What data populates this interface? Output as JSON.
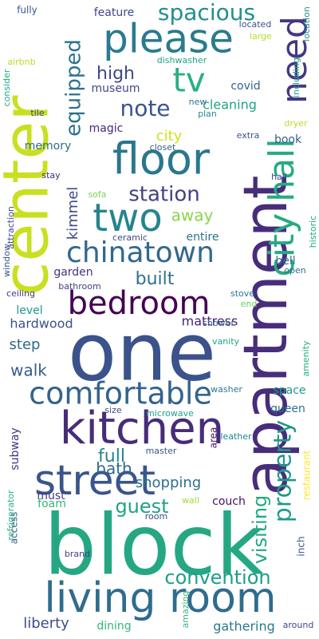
{
  "words": [
    {
      "text": "one",
      "color": "#3b528b",
      "weight": 10
    },
    {
      "text": "block",
      "color": "#26a784",
      "weight": 10
    },
    {
      "text": "apartment",
      "color": "#472d7b",
      "weight": 10
    },
    {
      "text": "center",
      "color": "#c8e020",
      "weight": 10
    },
    {
      "text": "living room",
      "color": "#2f6c8e",
      "weight": 9
    },
    {
      "text": "street",
      "color": "#39558c",
      "weight": 9
    },
    {
      "text": "kitchen",
      "color": "#472c7a",
      "weight": 9
    },
    {
      "text": "comfortable",
      "color": "#33638d",
      "weight": 8
    },
    {
      "text": "bedroom",
      "color": "#440154",
      "weight": 8
    },
    {
      "text": "floor",
      "color": "#2a768e",
      "weight": 8
    },
    {
      "text": "please",
      "color": "#297b8e",
      "weight": 8
    },
    {
      "text": "two",
      "color": "#25848e",
      "weight": 8
    },
    {
      "text": "city hall",
      "color": "#25ab82",
      "weight": 8
    },
    {
      "text": "chinatown",
      "color": "#31688e",
      "weight": 7
    },
    {
      "text": "need",
      "color": "#453781",
      "weight": 7
    },
    {
      "text": "tv",
      "color": "#2ab07f",
      "weight": 7
    },
    {
      "text": "property",
      "color": "#1f9a8a",
      "weight": 6
    },
    {
      "text": "spacious",
      "color": "#218f8d",
      "weight": 6
    },
    {
      "text": "note",
      "color": "#39558c",
      "weight": 6
    },
    {
      "text": "station",
      "color": "#424086",
      "weight": 6
    },
    {
      "text": "equipped",
      "color": "#2c728e",
      "weight": 6
    },
    {
      "text": "guest",
      "color": "#20a386",
      "weight": 6
    },
    {
      "text": "convention",
      "color": "#1f9e89",
      "weight": 6
    },
    {
      "text": "visiting",
      "color": "#22a884",
      "weight": 5
    },
    {
      "text": "built",
      "color": "#2d718e",
      "weight": 5
    },
    {
      "text": "high",
      "color": "#3e4989",
      "weight": 5
    },
    {
      "text": "full",
      "color": "#25848e",
      "weight": 5
    },
    {
      "text": "bath",
      "color": "#31688e",
      "weight": 5
    },
    {
      "text": "walk",
      "color": "#365d8d",
      "weight": 5
    },
    {
      "text": "away",
      "color": "#89d548",
      "weight": 5
    },
    {
      "text": "kimmel",
      "color": "#3e4a89",
      "weight": 4
    },
    {
      "text": "shopping",
      "color": "#2e6e8e",
      "weight": 4
    },
    {
      "text": "step",
      "color": "#31688e",
      "weight": 4
    },
    {
      "text": "liberty",
      "color": "#3d4d8a",
      "weight": 4
    },
    {
      "text": "gathering",
      "color": "#2a788e",
      "weight": 4
    },
    {
      "text": "mattress",
      "color": "#482374",
      "weight": 4
    },
    {
      "text": "city",
      "color": "#d2e21b",
      "weight": 4
    },
    {
      "text": "cleaning",
      "color": "#1fa287",
      "weight": 4
    },
    {
      "text": "hardwood",
      "color": "#3b528b",
      "weight": 3
    },
    {
      "text": "museum",
      "color": "#414487",
      "weight": 3
    },
    {
      "text": "feature",
      "color": "#3e4989",
      "weight": 3
    },
    {
      "text": "magic",
      "color": "#482878",
      "weight": 3
    },
    {
      "text": "covid",
      "color": "#33638d",
      "weight": 3
    },
    {
      "text": "book",
      "color": "#34618d",
      "weight": 3
    },
    {
      "text": "memory",
      "color": "#2f6c8e",
      "weight": 3
    },
    {
      "text": "space",
      "color": "#1f9a8a",
      "weight": 3
    },
    {
      "text": "queen",
      "color": "#2d708e",
      "weight": 3
    },
    {
      "text": "couch",
      "color": "#471063",
      "weight": 3
    },
    {
      "text": "dining",
      "color": "#35b779",
      "weight": 3
    },
    {
      "text": "garden",
      "color": "#46327e",
      "weight": 3
    },
    {
      "text": "entire",
      "color": "#2c738e",
      "weight": 3
    },
    {
      "text": "bell",
      "color": "#2c728e",
      "weight": 3
    },
    {
      "text": "level",
      "color": "#1f988b",
      "weight": 3
    },
    {
      "text": "foam",
      "color": "#35b779",
      "weight": 3
    },
    {
      "text": "must",
      "color": "#443983",
      "weight": 3
    },
    {
      "text": "subway",
      "color": "#453581",
      "weight": 3
    },
    {
      "text": "restaurant",
      "color": "#fde725",
      "weight": 2
    },
    {
      "text": "area",
      "color": "#481c6e",
      "weight": 2
    },
    {
      "text": "inch",
      "color": "#3a548c",
      "weight": 2
    },
    {
      "text": "access",
      "color": "#34608d",
      "weight": 2
    },
    {
      "text": "fully",
      "color": "#39568c",
      "weight": 2
    },
    {
      "text": "large",
      "color": "#b5de2b",
      "weight": 2
    },
    {
      "text": "located",
      "color": "#3b518b",
      "weight": 2
    },
    {
      "text": "airbnb",
      "color": "#b8de29",
      "weight": 2
    },
    {
      "text": "dishwasher",
      "color": "#20a486",
      "weight": 2
    },
    {
      "text": "including",
      "color": "#20a386",
      "weight": 2
    },
    {
      "text": "location",
      "color": "#21918c",
      "weight": 2
    },
    {
      "text": "consider",
      "color": "#23a983",
      "weight": 2
    },
    {
      "text": "tile",
      "color": "#404588",
      "weight": 2
    },
    {
      "text": "new",
      "color": "#2c738e",
      "weight": 2
    },
    {
      "text": "plan",
      "color": "#238a8d",
      "weight": 2
    },
    {
      "text": "dryer",
      "color": "#bade28",
      "weight": 2
    },
    {
      "text": "extra",
      "color": "#3b528b",
      "weight": 2
    },
    {
      "text": "closet",
      "color": "#33638d",
      "weight": 2
    },
    {
      "text": "stay",
      "color": "#482979",
      "weight": 2
    },
    {
      "text": "window",
      "color": "#3b528b",
      "weight": 2
    },
    {
      "text": "attraction",
      "color": "#3f4889",
      "weight": 2
    },
    {
      "text": "sofa",
      "color": "#7ad151",
      "weight": 2
    },
    {
      "text": "hall",
      "color": "#424086",
      "weight": 2
    },
    {
      "text": "historic",
      "color": "#22a785",
      "weight": 2
    },
    {
      "text": "ceramic",
      "color": "#3e4989",
      "weight": 2
    },
    {
      "text": "open",
      "color": "#2e6f8e",
      "weight": 2
    },
    {
      "text": "bathroom",
      "color": "#433e85",
      "weight": 2
    },
    {
      "text": "ceiling",
      "color": "#453882",
      "weight": 2
    },
    {
      "text": "stove",
      "color": "#2a788e",
      "weight": 2
    },
    {
      "text": "end",
      "color": "#6ece58",
      "weight": 2
    },
    {
      "text": "shower",
      "color": "#33638d",
      "weight": 2
    },
    {
      "text": "vanity",
      "color": "#20a486",
      "weight": 2
    },
    {
      "text": "amenity",
      "color": "#25ac82",
      "weight": 2
    },
    {
      "text": "washer",
      "color": "#2a788e",
      "weight": 2
    },
    {
      "text": "size",
      "color": "#3f4889",
      "weight": 2
    },
    {
      "text": "microwave",
      "color": "#1fa287",
      "weight": 2
    },
    {
      "text": "master",
      "color": "#39568c",
      "weight": 2
    },
    {
      "text": "leather",
      "color": "#25848e",
      "weight": 2
    },
    {
      "text": "refrigerator",
      "color": "#2db27d",
      "weight": 2
    },
    {
      "text": "wall",
      "color": "#a0da39",
      "weight": 2
    },
    {
      "text": "room",
      "color": "#3e4989",
      "weight": 2
    },
    {
      "text": "brand",
      "color": "#433e85",
      "weight": 2
    },
    {
      "text": "amazing",
      "color": "#35b779",
      "weight": 2
    },
    {
      "text": "around",
      "color": "#3f4889",
      "weight": 2
    }
  ]
}
